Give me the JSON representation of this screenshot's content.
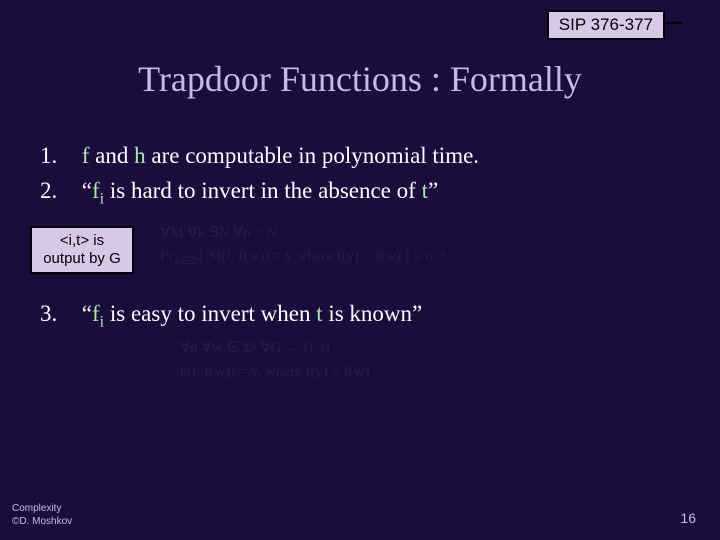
{
  "sip_label": "SIP 376-377",
  "title": "Trapdoor Functions : Formally",
  "items": {
    "n1": "1.",
    "t1a": "f",
    "t1b": " and ",
    "t1c": "h",
    "t1d": " are computable in polynomial time.",
    "n2": "2.",
    "t2a": "“",
    "t2b": "f",
    "t2c": "i",
    "t2d": " is hard to invert in the absence of ",
    "t2e": "t",
    "t2f": "”",
    "n3": "3.",
    "t3a": "“",
    "t3b": "f",
    "t3c": "i",
    "t3d": " is easy to invert when ",
    "t3e": "t",
    "t3f": " is known”"
  },
  "callout": {
    "l1": "<i,t> is",
    "l2": "output by G"
  },
  "math1": {
    "l1": "∀M ∀k ∃N ∀n > N",
    "l2": "Pr",
    "l2sub": "w∈Σⁿ",
    "l2rest": "[ M(i, f(w)) = y where f(y) = f(w) ] ≤ n⁻ᵏ"
  },
  "math2": {
    "l1": "∀n ∀w ∈ Σⁿ ∀G → (i, t)",
    "l2": "h(t, f(w)) = y, where f(y) = f(w)"
  },
  "footer": {
    "l1": "Complexity",
    "l2": "©D. Moshkov"
  },
  "page": "16",
  "colors": {
    "bg": "#1a0d3d",
    "title": "#c8b8e8",
    "text": "#ffffff",
    "hilite": "#a8e8a8",
    "box_bg": "#d8c8e8",
    "math_dim": "#2a1a4a"
  }
}
